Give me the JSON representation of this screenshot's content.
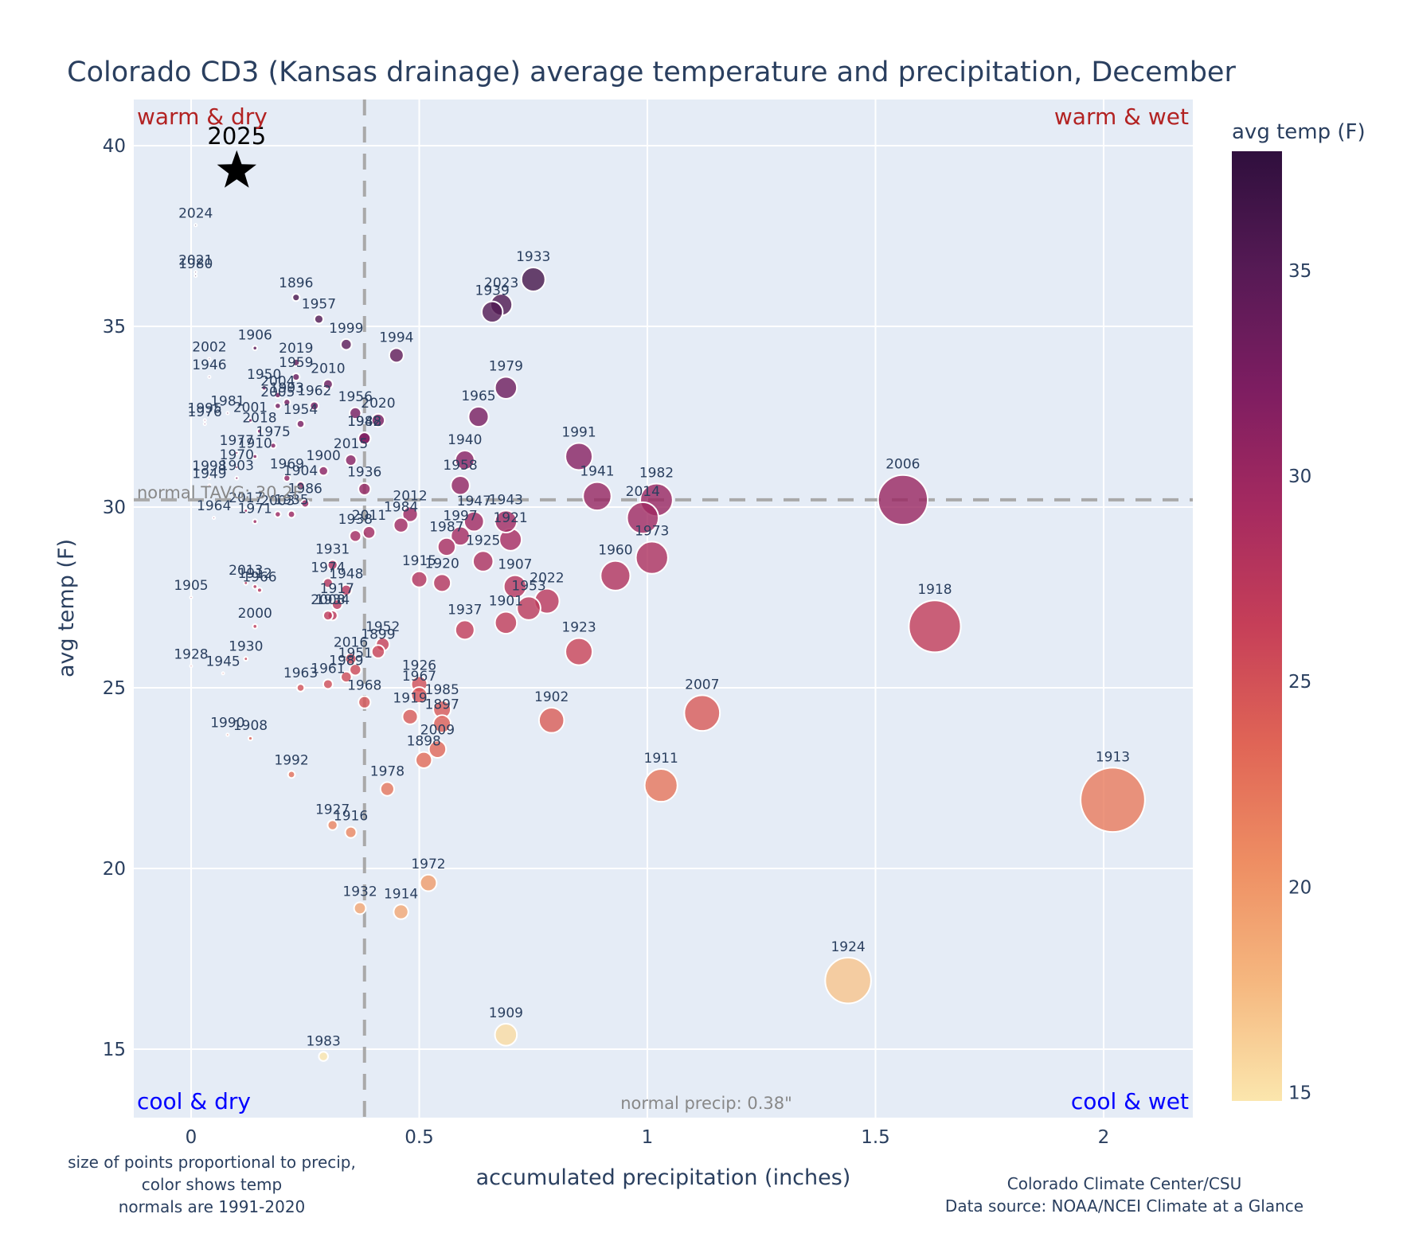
{
  "chart_data": {
    "type": "scatter",
    "title": "Colorado CD3 (Kansas drainage) average temperature and precipitation, December",
    "xlabel": "accumulated precipitation (inches)",
    "ylabel": "avg temp (F)",
    "xlim": [
      -0.13,
      2.19
    ],
    "ylim": [
      13.1,
      41.2
    ],
    "xticks": [
      0,
      0.5,
      1,
      1.5,
      2
    ],
    "xtick_labels": [
      "0",
      "0.5",
      "1",
      "1.5",
      "2"
    ],
    "yticks": [
      15,
      20,
      25,
      30,
      35,
      40
    ],
    "ytick_labels": [
      "15",
      "20",
      "25",
      "30",
      "35",
      "40"
    ],
    "grid": true,
    "colorbar": {
      "title": "avg temp (F)",
      "range": [
        14.8,
        37.9
      ],
      "ticks": [
        15,
        20,
        25,
        30,
        35
      ],
      "tick_labels": [
        "15",
        "20",
        "25",
        "30",
        "35"
      ],
      "colorscale": [
        "#fbe6ad",
        "#f5b77f",
        "#ee8e63",
        "#e06556",
        "#c63f58",
        "#a52a60",
        "#7d1d61",
        "#561a55",
        "#2f0f3d"
      ]
    },
    "normals": {
      "precip": 0.38,
      "temp": 30.2,
      "precip_label": "normal precip: 0.38\"",
      "temp_label": "normal TAVG: 30.2F"
    },
    "quadrant_labels": {
      "warm_dry": "warm & dry",
      "warm_wet": "warm & wet",
      "cool_dry": "cool & dry",
      "cool_wet": "cool & wet"
    },
    "quadrant_colors": {
      "warm": "#b22222",
      "cool": "#0000ff"
    },
    "highlight": {
      "year": "2025",
      "precip": 0.1,
      "temp": 39.3,
      "marker": "star",
      "color": "#000000"
    },
    "points": [
      {
        "year": "2024",
        "precip": 0.01,
        "temp": 37.8
      },
      {
        "year": "2021",
        "precip": 0.01,
        "temp": 36.5
      },
      {
        "year": "1980",
        "precip": 0.01,
        "temp": 36.4
      },
      {
        "year": "1896",
        "precip": 0.23,
        "temp": 35.8
      },
      {
        "year": "1957",
        "precip": 0.28,
        "temp": 35.2
      },
      {
        "year": "1999",
        "precip": 0.34,
        "temp": 34.5
      },
      {
        "year": "1994",
        "precip": 0.45,
        "temp": 34.2
      },
      {
        "year": "1906",
        "precip": 0.14,
        "temp": 34.4
      },
      {
        "year": "2002",
        "precip": 0.04,
        "temp": 34.1
      },
      {
        "year": "1946",
        "precip": 0.04,
        "temp": 33.6
      },
      {
        "year": "2019",
        "precip": 0.23,
        "temp": 34.0
      },
      {
        "year": "1959",
        "precip": 0.23,
        "temp": 33.6
      },
      {
        "year": "2010",
        "precip": 0.3,
        "temp": 33.4
      },
      {
        "year": "1950",
        "precip": 0.16,
        "temp": 33.3
      },
      {
        "year": "2004",
        "precip": 0.19,
        "temp": 33.1
      },
      {
        "year": "2005",
        "precip": 0.19,
        "temp": 32.8
      },
      {
        "year": "1962",
        "precip": 0.27,
        "temp": 32.8
      },
      {
        "year": "1981",
        "precip": 0.08,
        "temp": 32.6
      },
      {
        "year": "1995",
        "precip": 0.03,
        "temp": 32.4
      },
      {
        "year": "1976",
        "precip": 0.03,
        "temp": 32.3
      },
      {
        "year": "2001",
        "precip": 0.13,
        "temp": 32.4
      },
      {
        "year": "1993",
        "precip": 0.21,
        "temp": 32.9
      },
      {
        "year": "1954",
        "precip": 0.24,
        "temp": 32.3
      },
      {
        "year": "1956",
        "precip": 0.36,
        "temp": 32.6
      },
      {
        "year": "2020",
        "precip": 0.41,
        "temp": 32.4
      },
      {
        "year": "1942",
        "precip": 0.38,
        "temp": 31.9
      },
      {
        "year": "1933",
        "precip": 0.75,
        "temp": 36.3
      },
      {
        "year": "2023",
        "precip": 0.68,
        "temp": 35.6
      },
      {
        "year": "1939",
        "precip": 0.66,
        "temp": 35.4
      },
      {
        "year": "1979",
        "precip": 0.69,
        "temp": 33.3
      },
      {
        "year": "1965",
        "precip": 0.63,
        "temp": 32.5
      },
      {
        "year": "2018",
        "precip": 0.15,
        "temp": 32.1
      },
      {
        "year": "1975",
        "precip": 0.18,
        "temp": 31.7
      },
      {
        "year": "1988",
        "precip": 0.38,
        "temp": 31.9
      },
      {
        "year": "1977",
        "precip": 0.1,
        "temp": 31.5
      },
      {
        "year": "1910",
        "precip": 0.14,
        "temp": 31.4
      },
      {
        "year": "1970",
        "precip": 0.1,
        "temp": 31.1
      },
      {
        "year": "1900",
        "precip": 0.29,
        "temp": 31.0
      },
      {
        "year": "1969",
        "precip": 0.21,
        "temp": 30.8
      },
      {
        "year": "1904",
        "precip": 0.24,
        "temp": 30.6
      },
      {
        "year": "2015",
        "precip": 0.35,
        "temp": 31.3
      },
      {
        "year": "1936",
        "precip": 0.38,
        "temp": 30.5
      },
      {
        "year": "1940",
        "precip": 0.6,
        "temp": 31.3
      },
      {
        "year": "1958",
        "precip": 0.59,
        "temp": 30.6
      },
      {
        "year": "1991",
        "precip": 0.85,
        "temp": 31.4
      },
      {
        "year": "1941",
        "precip": 0.89,
        "temp": 30.3
      },
      {
        "year": "1982",
        "precip": 1.02,
        "temp": 30.2
      },
      {
        "year": "2014",
        "precip": 0.99,
        "temp": 29.7
      },
      {
        "year": "2006",
        "precip": 1.56,
        "temp": 30.2
      },
      {
        "year": "1998",
        "precip": 0.04,
        "temp": 30.8
      },
      {
        "year": "1903",
        "precip": 0.1,
        "temp": 30.8
      },
      {
        "year": "1949",
        "precip": 0.04,
        "temp": 30.6
      },
      {
        "year": "2017",
        "precip": 0.12,
        "temp": 29.9
      },
      {
        "year": "1986",
        "precip": 0.25,
        "temp": 30.1
      },
      {
        "year": "1964",
        "precip": 0.05,
        "temp": 29.7
      },
      {
        "year": "1971",
        "precip": 0.14,
        "temp": 29.6
      },
      {
        "year": "2003",
        "precip": 0.19,
        "temp": 29.8
      },
      {
        "year": "1935",
        "precip": 0.22,
        "temp": 29.8
      },
      {
        "year": "2012",
        "precip": 0.48,
        "temp": 29.8
      },
      {
        "year": "1984",
        "precip": 0.46,
        "temp": 29.5
      },
      {
        "year": "2011",
        "precip": 0.39,
        "temp": 29.3
      },
      {
        "year": "1938",
        "precip": 0.36,
        "temp": 29.2
      },
      {
        "year": "1947",
        "precip": 0.62,
        "temp": 29.6
      },
      {
        "year": "1943",
        "precip": 0.69,
        "temp": 29.6
      },
      {
        "year": "1997",
        "precip": 0.59,
        "temp": 29.2
      },
      {
        "year": "1921",
        "precip": 0.7,
        "temp": 29.1
      },
      {
        "year": "1987",
        "precip": 0.56,
        "temp": 28.9
      },
      {
        "year": "1925",
        "precip": 0.64,
        "temp": 28.5
      },
      {
        "year": "1973",
        "precip": 1.01,
        "temp": 28.6
      },
      {
        "year": "1960",
        "precip": 0.93,
        "temp": 28.1
      },
      {
        "year": "1931",
        "precip": 0.31,
        "temp": 28.4
      },
      {
        "year": "1915",
        "precip": 0.5,
        "temp": 28.0
      },
      {
        "year": "1920",
        "precip": 0.55,
        "temp": 27.9
      },
      {
        "year": "1907",
        "precip": 0.71,
        "temp": 27.8
      },
      {
        "year": "1974",
        "precip": 0.3,
        "temp": 27.9
      },
      {
        "year": "1948",
        "precip": 0.34,
        "temp": 27.7
      },
      {
        "year": "2013",
        "precip": 0.12,
        "temp": 27.9
      },
      {
        "year": "1912",
        "precip": 0.14,
        "temp": 27.8
      },
      {
        "year": "1966",
        "precip": 0.15,
        "temp": 27.7
      },
      {
        "year": "1905",
        "precip": 0.0,
        "temp": 27.5
      },
      {
        "year": "1917",
        "precip": 0.32,
        "temp": 27.3
      },
      {
        "year": "2008",
        "precip": 0.3,
        "temp": 27.0
      },
      {
        "year": "1934",
        "precip": 0.31,
        "temp": 27.0
      },
      {
        "year": "2022",
        "precip": 0.78,
        "temp": 27.4
      },
      {
        "year": "1953",
        "precip": 0.74,
        "temp": 27.2
      },
      {
        "year": "1901",
        "precip": 0.69,
        "temp": 26.8
      },
      {
        "year": "1937",
        "precip": 0.6,
        "temp": 26.6
      },
      {
        "year": "2000",
        "precip": 0.14,
        "temp": 26.7
      },
      {
        "year": "1918",
        "precip": 1.63,
        "temp": 26.7
      },
      {
        "year": "1952",
        "precip": 0.42,
        "temp": 26.2
      },
      {
        "year": "1899",
        "precip": 0.41,
        "temp": 26.0
      },
      {
        "year": "1923",
        "precip": 0.85,
        "temp": 26.0
      },
      {
        "year": "2016",
        "precip": 0.35,
        "temp": 25.8
      },
      {
        "year": "1930",
        "precip": 0.12,
        "temp": 25.8
      },
      {
        "year": "1951",
        "precip": 0.36,
        "temp": 25.5
      },
      {
        "year": "1928",
        "precip": 0.0,
        "temp": 25.6
      },
      {
        "year": "1945",
        "precip": 0.07,
        "temp": 25.4
      },
      {
        "year": "1989",
        "precip": 0.34,
        "temp": 25.3
      },
      {
        "year": "1961",
        "precip": 0.3,
        "temp": 25.1
      },
      {
        "year": "1963",
        "precip": 0.24,
        "temp": 25.0
      },
      {
        "year": "1968",
        "precip": 0.38,
        "temp": 24.6
      },
      {
        "year": "1926",
        "precip": 0.5,
        "temp": 25.1
      },
      {
        "year": "1967",
        "precip": 0.5,
        "temp": 24.8
      },
      {
        "year": "1985",
        "precip": 0.55,
        "temp": 24.4
      },
      {
        "year": "1919",
        "precip": 0.48,
        "temp": 24.2
      },
      {
        "year": "1897",
        "precip": 0.55,
        "temp": 24.0
      },
      {
        "year": "1902",
        "precip": 0.79,
        "temp": 24.1
      },
      {
        "year": "2007",
        "precip": 1.12,
        "temp": 24.3
      },
      {
        "year": "1990",
        "precip": 0.08,
        "temp": 23.7
      },
      {
        "year": "1908",
        "precip": 0.13,
        "temp": 23.6
      },
      {
        "year": "2009",
        "precip": 0.54,
        "temp": 23.3
      },
      {
        "year": "1898",
        "precip": 0.51,
        "temp": 23.0
      },
      {
        "year": "1992",
        "precip": 0.22,
        "temp": 22.6
      },
      {
        "year": "1911",
        "precip": 1.03,
        "temp": 22.3
      },
      {
        "year": "1978",
        "precip": 0.43,
        "temp": 22.2
      },
      {
        "year": "1913",
        "precip": 2.02,
        "temp": 21.9
      },
      {
        "year": "1927",
        "precip": 0.31,
        "temp": 21.2
      },
      {
        "year": "1916",
        "precip": 0.35,
        "temp": 21.0
      },
      {
        "year": "1972",
        "precip": 0.52,
        "temp": 19.6
      },
      {
        "year": "1932",
        "precip": 0.37,
        "temp": 18.9
      },
      {
        "year": "1914",
        "precip": 0.46,
        "temp": 18.8
      },
      {
        "year": "1924",
        "precip": 1.44,
        "temp": 16.9
      },
      {
        "year": "1909",
        "precip": 0.69,
        "temp": 15.4
      },
      {
        "year": "1983",
        "precip": 0.29,
        "temp": 14.8
      }
    ],
    "annotations": {
      "size_note": [
        "size of points proportional to precip,",
        "color shows temp",
        "normals are 1991-2020"
      ],
      "credit": [
        "Colorado Climate Center/CSU",
        "Data source: NOAA/NCEI Climate at a Glance"
      ]
    }
  }
}
